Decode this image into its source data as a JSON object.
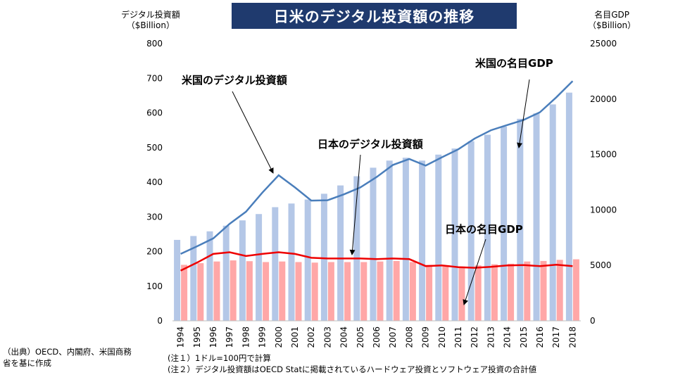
{
  "title": "日米のデジタル投資額の推移",
  "left_axis_heading": [
    "デジタル投資額",
    "（$Billion）"
  ],
  "right_axis_heading": [
    "名目GDP",
    "（$Billion）"
  ],
  "source_note": [
    "（出典）OECD、内閣府、米国商務",
    "省を基に作成"
  ],
  "footnotes": [
    "(注１）1ドル=100円で計算",
    "(注２）デジタル投資額はOECD Statに掲載されているハードウェア投資とソフトウェア投資の合計値"
  ],
  "colors": {
    "us_bar": "#b4c7e7",
    "jp_bar": "#ffa7a7",
    "us_line": "#4a7ebb",
    "jp_line": "#ee0000",
    "title_bg": "#1f3a6e"
  },
  "chart_data": {
    "type": "bar+line",
    "categories": [
      "1994",
      "1995",
      "1996",
      "1997",
      "1998",
      "1999",
      "2000",
      "2001",
      "2002",
      "2003",
      "2004",
      "2005",
      "2006",
      "2007",
      "2008",
      "2009",
      "2010",
      "2011",
      "2012",
      "2013",
      "2014",
      "2015",
      "2016",
      "2017",
      "2018"
    ],
    "left_axis": {
      "min": 0,
      "max": 800,
      "ticks": [
        0,
        100,
        200,
        300,
        400,
        500,
        600,
        700,
        800
      ]
    },
    "right_axis": {
      "min": 0,
      "max": 25000,
      "ticks": [
        0,
        5000,
        10000,
        15000,
        20000,
        25000
      ]
    },
    "grid": false,
    "bar_series": [
      {
        "name": "米国の名目GDP",
        "axis": "right",
        "values": [
          7300,
          7650,
          8070,
          8580,
          9060,
          9630,
          10250,
          10580,
          10940,
          11460,
          12210,
          13040,
          13810,
          14450,
          14710,
          14450,
          14990,
          15540,
          16200,
          16780,
          17520,
          18220,
          18710,
          19520,
          20580
        ]
      },
      {
        "name": "日本の名目GDP",
        "axis": "right",
        "values": [
          5050,
          5200,
          5350,
          5450,
          5380,
          5300,
          5350,
          5300,
          5250,
          5300,
          5300,
          5300,
          5350,
          5400,
          5300,
          5050,
          5000,
          4900,
          5000,
          5100,
          5150,
          5350,
          5400,
          5500,
          5550
        ]
      }
    ],
    "line_series": [
      {
        "name": "米国のデジタル投資額",
        "axis": "left",
        "values": [
          193,
          215,
          238,
          280,
          315,
          370,
          420,
          385,
          347,
          348,
          365,
          385,
          415,
          450,
          467,
          448,
          472,
          495,
          526,
          550,
          565,
          580,
          602,
          645,
          692
        ]
      },
      {
        "name": "日本のデジタル投資額",
        "axis": "left",
        "values": [
          145,
          168,
          193,
          198,
          187,
          193,
          198,
          193,
          182,
          180,
          180,
          180,
          178,
          180,
          178,
          158,
          160,
          155,
          153,
          156,
          160,
          161,
          158,
          162,
          158
        ]
      }
    ],
    "annotations": [
      {
        "text": "米国のデジタル投資額",
        "points_to": "2000"
      },
      {
        "text": "日本のデジタル投資額",
        "points_to": "2004"
      },
      {
        "text": "米国の名目GDP",
        "points_to": "2015"
      },
      {
        "text": "日本の名目GDP",
        "points_to": "2011"
      }
    ]
  }
}
